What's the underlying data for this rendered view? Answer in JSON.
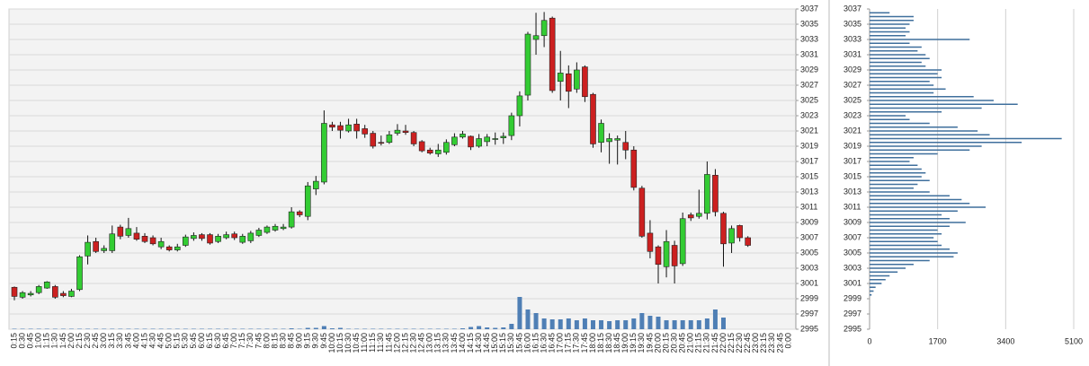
{
  "chart_data": [
    {
      "type": "candlestick",
      "categories": [
        "0:15",
        "0:30",
        "0:45",
        "1:00",
        "1:15",
        "1:30",
        "1:45",
        "2:00",
        "2:15",
        "2:30",
        "2:45",
        "3:00",
        "3:15",
        "3:30",
        "3:45",
        "4:00",
        "4:15",
        "4:30",
        "4:45",
        "5:00",
        "5:15",
        "5:30",
        "5:45",
        "6:00",
        "6:15",
        "6:30",
        "6:45",
        "7:00",
        "7:15",
        "7:30",
        "7:45",
        "8:00",
        "8:15",
        "8:30",
        "8:45",
        "9:00",
        "9:15",
        "9:30",
        "9:45",
        "10:00",
        "10:15",
        "10:30",
        "10:45",
        "11:00",
        "11:15",
        "11:30",
        "11:45",
        "12:00",
        "12:15",
        "12:30",
        "12:45",
        "13:00",
        "13:15",
        "13:30",
        "13:45",
        "14:00",
        "14:15",
        "14:30",
        "14:45",
        "15:00",
        "15:15",
        "15:30",
        "15:45",
        "16:00",
        "16:15",
        "16:30",
        "16:45",
        "17:00",
        "17:15",
        "17:30",
        "17:45",
        "18:00",
        "18:15",
        "18:30",
        "18:45",
        "19:00",
        "19:15",
        "19:30",
        "19:45",
        "20:00",
        "20:15",
        "20:30",
        "20:45",
        "21:00",
        "21:15",
        "21:30",
        "21:45",
        "22:00",
        "22:15",
        "22:30",
        "22:45",
        "23:00",
        "23:15",
        "23:30",
        "23:45",
        "0:00"
      ],
      "open": [
        3000.5,
        2999.2,
        2999.5,
        2999.8,
        3000.4,
        3000.6,
        2999.7,
        2999.3,
        3000.2,
        3004.6,
        3006.5,
        3005.3,
        3005.3,
        3008.4,
        3007.3,
        3007.6,
        3007.2,
        3007,
        3005.8,
        3005.8,
        3005.4,
        3006,
        3006.9,
        3007.4,
        3007.4,
        3006.5,
        3007,
        3007.5,
        3006.4,
        3006.6,
        3007.3,
        3007.7,
        3008,
        3008.2,
        3008.4,
        3010.4,
        3009.8,
        3013.4,
        3014.3,
        3021.8,
        3021.7,
        3021,
        3021.9,
        3021.3,
        3020.7,
        3019.5,
        3019.5,
        3020.7,
        3021,
        3020.8,
        3019.6,
        3018.5,
        3018,
        3018.2,
        3019.2,
        3020.2,
        3020.3,
        3019,
        3019.6,
        3020,
        3020.1,
        3020.4,
        3023,
        3025.7,
        3033,
        3033.5,
        3035.8,
        3027.5,
        3028.5,
        3026.5,
        3029.4,
        3025.8,
        3019.5,
        3019.6,
        3019.8,
        3019.5,
        3018.5,
        3013.5,
        3007.6,
        3005.8,
        3003.2,
        3006,
        3003.6,
        3010,
        3009.8,
        3010.2,
        3015.2,
        3010.2,
        3006.3,
        3008.6,
        3007,
        null,
        null,
        null,
        null,
        null
      ],
      "high": [
        3000.6,
        3000,
        3000,
        3000.8,
        3001.3,
        3000.8,
        3000,
        3000.3,
        3004.7,
        3007.3,
        3007,
        3006,
        3008.6,
        3008.7,
        3009.6,
        3008.4,
        3007.6,
        3007.3,
        3007,
        3006,
        3006.2,
        3007.4,
        3007.7,
        3007.6,
        3007.6,
        3007.5,
        3007.8,
        3007.8,
        3007.5,
        3007.9,
        3008.3,
        3008.6,
        3008.8,
        3008.8,
        3011,
        3010.6,
        3014.3,
        3015.1,
        3023.7,
        3022.2,
        3022.2,
        3022.6,
        3022.6,
        3021.8,
        3021,
        3020.4,
        3021,
        3021.9,
        3021.8,
        3021,
        3019.8,
        3018.8,
        3019.3,
        3019.9,
        3020.7,
        3021,
        3020.4,
        3020.6,
        3020.6,
        3020.8,
        3020.8,
        3023.4,
        3026.2,
        3034,
        3036.5,
        3036.6,
        3036,
        3031.5,
        3029.6,
        3030,
        3029.6,
        3026,
        3022.5,
        3020.7,
        3020.4,
        3021,
        3019,
        3013.8,
        3009.3,
        3006,
        3008,
        3006.6,
        3010.3,
        3010.3,
        3013.3,
        3017,
        3016,
        3010.4,
        3008.6,
        3008.7,
        3007.2,
        null,
        null,
        null,
        null,
        null
      ],
      "low": [
        2998.8,
        2999,
        2999.3,
        2999.6,
        3000.3,
        2999,
        2999.2,
        2999.2,
        3000,
        3003.5,
        3005,
        3005,
        3005,
        3006.8,
        3007,
        3006.6,
        3006.3,
        3006,
        3005.5,
        3005.2,
        3005.2,
        3005.8,
        3006.6,
        3006.6,
        3006.1,
        3006.3,
        3006.8,
        3006.7,
        3006.2,
        3006.3,
        3007.1,
        3007.5,
        3007.8,
        3008,
        3008.2,
        3009.7,
        3009.3,
        3012.6,
        3014,
        3021,
        3020,
        3020.8,
        3020,
        3020.1,
        3018.7,
        3019.1,
        3019.3,
        3020.4,
        3020.5,
        3019,
        3018.2,
        3017.9,
        3017.6,
        3017.9,
        3019,
        3020,
        3018.5,
        3018.8,
        3019,
        3019.2,
        3019.3,
        3019.8,
        3021.6,
        3025,
        3031,
        3032,
        3026,
        3025,
        3024,
        3026,
        3024.8,
        3018.8,
        3018.2,
        3016.7,
        3016.6,
        3017.3,
        3013.2,
        3007,
        3004.3,
        3001,
        3001.8,
        3001,
        3003.3,
        3009.2,
        3009.5,
        3009.4,
        3009.8,
        3003.2,
        3005,
        3006.5,
        3005.8,
        null,
        null,
        null,
        null,
        null
      ],
      "close": [
        2999.3,
        2999.8,
        2999.7,
        3000.6,
        3001.2,
        2999.2,
        2999.4,
        3000,
        3004.5,
        3006.4,
        3005.2,
        3005.6,
        3007.5,
        3007.2,
        3008.2,
        3006.8,
        3006.5,
        3006.2,
        3006.5,
        3005.4,
        3005.8,
        3007.1,
        3007.3,
        3006.9,
        3006.3,
        3007.2,
        3007.4,
        3007,
        3007.2,
        3007.6,
        3008,
        3008.4,
        3008.5,
        3008.4,
        3010.4,
        3010,
        3013.8,
        3014.4,
        3022,
        3021.5,
        3021.1,
        3021.8,
        3021,
        3020.6,
        3019,
        3019.4,
        3020.5,
        3021.1,
        3020.8,
        3019.3,
        3018.4,
        3018.1,
        3018.5,
        3019.5,
        3020.2,
        3020.6,
        3018.9,
        3020,
        3020.2,
        3020,
        3020.3,
        3023,
        3025.6,
        3033.7,
        3033.5,
        3035.5,
        3026.3,
        3028.6,
        3026.2,
        3029,
        3025.5,
        3019.3,
        3022,
        3020,
        3020,
        3018.5,
        3013.6,
        3007.2,
        3005.2,
        3003.5,
        3006.5,
        3003.3,
        3009.5,
        3009.6,
        3010.2,
        3015.3,
        3010.4,
        3006.2,
        3008.2,
        3007,
        3006,
        null,
        null,
        null,
        null,
        null
      ],
      "volume": [
        0.5,
        0.5,
        0.5,
        0.5,
        0.5,
        0.5,
        0.5,
        0.5,
        0.5,
        0.5,
        0.5,
        0.5,
        0.5,
        0.5,
        0.5,
        0.5,
        0.5,
        0.5,
        0.5,
        0.5,
        0.5,
        0.5,
        0.5,
        0.5,
        0.5,
        0.5,
        0.5,
        0.5,
        0.5,
        0.5,
        0.5,
        0.5,
        0.5,
        0.5,
        1,
        0.5,
        1.5,
        1.5,
        3.5,
        1,
        1.5,
        0.5,
        0.5,
        0.5,
        0.5,
        0.5,
        0.5,
        0.5,
        0.5,
        0.5,
        0.5,
        0.5,
        0.5,
        0.5,
        0.5,
        1,
        2.5,
        3.5,
        2,
        1.5,
        2,
        6,
        36,
        22,
        18,
        12,
        11,
        11,
        12,
        10,
        12,
        10,
        10,
        9,
        10,
        10,
        12,
        18,
        15,
        14,
        10,
        10,
        10,
        10,
        10,
        12,
        22,
        13,
        0,
        0,
        0,
        null,
        null,
        null,
        null,
        null
      ],
      "up_color": "#33cc33",
      "down_color": "#cc2020",
      "volume_color": "#4f7fb5",
      "ylim": [
        2995,
        3037
      ],
      "yticks": [
        2995,
        2997,
        2999,
        3001,
        3003,
        3005,
        3007,
        3009,
        3011,
        3013,
        3015,
        3017,
        3019,
        3021,
        3023,
        3025,
        3027,
        3029,
        3031,
        3033,
        3035,
        3037
      ],
      "grid": true
    },
    {
      "type": "horizontal_bar",
      "y": [
        2999.5,
        3000,
        3000.5,
        3001,
        3001.5,
        3002,
        3002.5,
        3003,
        3003.5,
        3004,
        3004.5,
        3005,
        3005.5,
        3006,
        3006.5,
        3007,
        3007.5,
        3008,
        3008.5,
        3009,
        3009.5,
        3010,
        3010.5,
        3011,
        3011.5,
        3012,
        3012.5,
        3013,
        3013.5,
        3014,
        3014.5,
        3015,
        3015.5,
        3016,
        3016.5,
        3017,
        3017.5,
        3018,
        3018.5,
        3019,
        3019.5,
        3020,
        3020.5,
        3021,
        3021.5,
        3022,
        3022.5,
        3023,
        3023.5,
        3024,
        3024.5,
        3025,
        3025.5,
        3026,
        3026.5,
        3027,
        3027.5,
        3028,
        3028.5,
        3029,
        3029.5,
        3030,
        3030.5,
        3031,
        3031.5,
        3032,
        3032.5,
        3033,
        3033.5,
        3034,
        3034.5,
        3035,
        3035.5,
        3036,
        3036.5
      ],
      "values": [
        50,
        100,
        150,
        300,
        400,
        500,
        700,
        900,
        1100,
        1500,
        2100,
        2200,
        2000,
        1800,
        1700,
        1600,
        1800,
        1700,
        2000,
        2400,
        2000,
        1800,
        2200,
        2900,
        2500,
        2300,
        2000,
        1500,
        1100,
        1200,
        1500,
        1300,
        1400,
        1300,
        1200,
        1000,
        1100,
        1700,
        2500,
        2800,
        3800,
        4800,
        3000,
        2700,
        2200,
        1500,
        1000,
        900,
        1800,
        2800,
        3700,
        3100,
        2600,
        1600,
        1900,
        1600,
        1500,
        1800,
        1700,
        1800,
        1400,
        1300,
        1500,
        1400,
        1200,
        1300,
        1000,
        2500,
        900,
        1000,
        900,
        1000,
        1100,
        1100,
        500
      ],
      "color": "#3f6f9c",
      "xlim": [
        0,
        5100
      ],
      "xticks": [
        0,
        1700,
        3400,
        5100
      ],
      "ylim": [
        2995,
        3037
      ],
      "yticks": [
        2995,
        2997,
        2999,
        3001,
        3003,
        3005,
        3007,
        3009,
        3011,
        3013,
        3015,
        3017,
        3019,
        3021,
        3023,
        3025,
        3027,
        3029,
        3031,
        3033,
        3035,
        3037
      ],
      "grid": true
    }
  ]
}
